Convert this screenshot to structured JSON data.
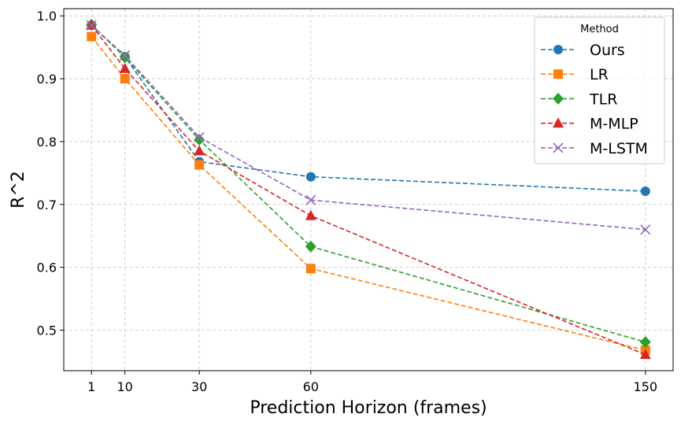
{
  "chart_data": {
    "type": "line",
    "title": "",
    "xlabel": "Prediction Horizon (frames)",
    "ylabel": "R^2",
    "x": [
      1,
      10,
      30,
      60,
      150
    ],
    "x_ticks": [
      "1",
      "10",
      "30",
      "60",
      "150"
    ],
    "xlim": [
      -6.45,
      157.45
    ],
    "ylim": [
      0.4355,
      1.0115
    ],
    "y_ticks": [
      "0.5",
      "0.6",
      "0.7",
      "0.8",
      "0.9",
      "1.0"
    ],
    "grid": true,
    "legend": {
      "title": "Method",
      "placement": "top-right"
    },
    "series": [
      {
        "name": "Ours",
        "color": "#1f77b4",
        "marker": "circle",
        "values": [
          0.985,
          0.935,
          0.768,
          0.744,
          0.721
        ]
      },
      {
        "name": "LR",
        "color": "#ff7f0e",
        "marker": "square",
        "values": [
          0.967,
          0.9,
          0.763,
          0.598,
          0.468
        ]
      },
      {
        "name": "TLR",
        "color": "#2ca02c",
        "marker": "diamond",
        "values": [
          0.986,
          0.934,
          0.803,
          0.633,
          0.481
        ]
      },
      {
        "name": "M-MLP",
        "color": "#d62728",
        "marker": "triangle",
        "values": [
          0.985,
          0.916,
          0.785,
          0.682,
          0.461
        ]
      },
      {
        "name": "M-LSTM",
        "color": "#9467bd",
        "marker": "x",
        "values": [
          0.985,
          0.937,
          0.807,
          0.707,
          0.66
        ]
      }
    ]
  }
}
